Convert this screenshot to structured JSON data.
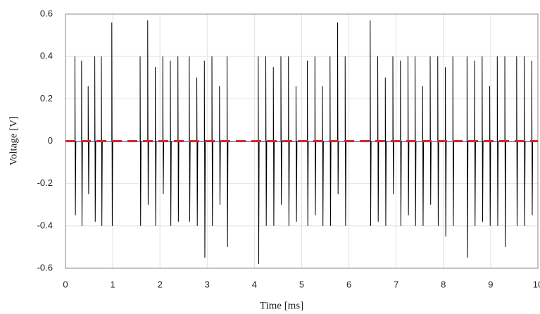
{
  "chart_data": {
    "type": "line",
    "xlabel": "Time [ms]",
    "ylabel": "Voltage [V]",
    "xlim": [
      0,
      10
    ],
    "ylim": [
      -0.6,
      0.6
    ],
    "xticks": [
      0,
      1,
      2,
      3,
      4,
      5,
      6,
      7,
      8,
      9,
      10
    ],
    "yticks": [
      -0.6,
      -0.4,
      -0.2,
      0,
      0.2,
      0.4,
      0.6
    ],
    "grid": true,
    "series": [
      {
        "color": "#000000",
        "x": [
          0,
          0.2,
          0.2,
          0.21,
          0.22,
          0.34,
          0.34,
          0.35,
          0.36,
          0.48,
          0.48,
          0.49,
          0.5,
          0.62,
          0.62,
          0.63,
          0.64,
          0.76,
          0.76,
          0.77,
          0.78,
          0.98,
          0.98,
          0.99,
          1.0,
          1.58,
          1.58,
          1.59,
          1.6,
          1.74,
          1.74,
          1.75,
          1.76,
          1.9,
          1.9,
          1.91,
          1.92,
          2.06,
          2.06,
          2.07,
          2.08,
          2.22,
          2.22,
          2.23,
          2.24,
          2.38,
          2.38,
          2.39,
          2.4,
          2.62,
          2.62,
          2.63,
          2.64,
          2.78,
          2.78,
          2.79,
          2.8,
          2.94,
          2.94,
          2.95,
          2.96,
          3.1,
          3.1,
          3.11,
          3.12,
          3.26,
          3.26,
          3.27,
          3.28,
          3.42,
          3.42,
          3.43,
          3.44,
          4.08,
          4.08,
          4.09,
          4.1,
          4.24,
          4.24,
          4.25,
          4.26,
          4.4,
          4.4,
          4.41,
          4.42,
          4.56,
          4.56,
          4.57,
          4.58,
          4.72,
          4.72,
          4.73,
          4.74,
          4.88,
          4.88,
          4.89,
          4.9,
          5.12,
          5.12,
          5.13,
          5.14,
          5.28,
          5.28,
          5.29,
          5.3,
          5.44,
          5.44,
          5.45,
          5.46,
          5.6,
          5.6,
          5.61,
          5.62,
          5.76,
          5.76,
          5.77,
          5.78,
          5.92,
          5.92,
          5.93,
          5.94,
          6.45,
          6.45,
          6.46,
          6.47,
          6.61,
          6.61,
          6.62,
          6.63,
          6.77,
          6.77,
          6.78,
          6.79,
          6.93,
          6.93,
          6.94,
          6.95,
          7.09,
          7.09,
          7.1,
          7.11,
          7.25,
          7.25,
          7.26,
          7.27,
          7.4,
          7.4,
          7.41,
          7.42,
          7.56,
          7.56,
          7.57,
          7.58,
          7.72,
          7.72,
          7.73,
          7.74,
          7.88,
          7.88,
          7.89,
          7.9,
          8.04,
          8.04,
          8.05,
          8.06,
          8.2,
          8.2,
          8.21,
          8.22,
          8.5,
          8.5,
          8.51,
          8.52,
          8.66,
          8.66,
          8.67,
          8.68,
          8.82,
          8.82,
          8.83,
          8.84,
          8.98,
          8.98,
          8.99,
          9.0,
          9.14,
          9.14,
          9.15,
          9.16,
          9.3,
          9.3,
          9.31,
          9.32,
          9.55,
          9.55,
          9.56,
          9.57,
          9.71,
          9.71,
          9.72,
          9.73,
          9.87,
          9.87,
          9.88,
          9.89,
          10
        ],
        "values": [
          0,
          0,
          0.4,
          -0.35,
          0,
          0,
          0.38,
          -0.4,
          0,
          0,
          0.26,
          -0.25,
          0,
          0,
          0.4,
          -0.38,
          0,
          0,
          0.4,
          -0.4,
          0,
          0,
          0.56,
          -0.4,
          0,
          0,
          0.4,
          -0.4,
          0,
          0,
          0.57,
          -0.3,
          0,
          0,
          0.35,
          -0.4,
          0,
          0,
          0.4,
          -0.25,
          0,
          0,
          0.38,
          -0.4,
          0,
          0,
          0.4,
          -0.38,
          0,
          0,
          0.4,
          -0.38,
          0,
          0,
          0.3,
          -0.4,
          0,
          0,
          0.38,
          -0.55,
          0,
          0,
          0.4,
          -0.4,
          0,
          0,
          0.26,
          -0.3,
          0,
          0,
          0.4,
          -0.5,
          0,
          0,
          0.4,
          -0.58,
          0,
          0,
          0.4,
          -0.4,
          0,
          0,
          0.35,
          -0.4,
          0,
          0,
          0.4,
          -0.3,
          0,
          0,
          0.4,
          -0.4,
          0,
          0,
          0.26,
          -0.38,
          0,
          0,
          0.38,
          -0.4,
          0,
          0,
          0.4,
          -0.35,
          0,
          0,
          0.26,
          -0.4,
          0,
          0,
          0.4,
          -0.4,
          0,
          0,
          0.56,
          -0.25,
          0,
          0,
          0.4,
          -0.4,
          0,
          0,
          0.57,
          -0.4,
          0,
          0,
          0.4,
          -0.38,
          0,
          0,
          0.3,
          -0.4,
          0,
          0,
          0.4,
          -0.25,
          0,
          0,
          0.38,
          -0.4,
          0,
          0,
          0.4,
          -0.35,
          0,
          0,
          0.4,
          -0.4,
          0,
          0,
          0.26,
          -0.4,
          0,
          0,
          0.4,
          -0.3,
          0,
          0,
          0.4,
          -0.4,
          0,
          0,
          0.35,
          -0.45,
          0,
          0,
          0.4,
          -0.4,
          0,
          0,
          0.4,
          -0.55,
          0,
          0,
          0.38,
          -0.4,
          0,
          0,
          0.4,
          -0.38,
          0,
          0,
          0.26,
          -0.4,
          0,
          0,
          0.4,
          -0.4,
          0,
          0,
          0.4,
          -0.5,
          0,
          0,
          0.4,
          -0.4,
          0,
          0,
          0.4,
          -0.4,
          0,
          0,
          0.38,
          -0.35,
          0,
          0
        ]
      },
      {
        "color": "#1f2fa0",
        "x": [
          0,
          10
        ],
        "values": [
          0,
          0
        ]
      },
      {
        "color": "#d62728",
        "dash": true,
        "x": [
          0,
          10
        ],
        "values": [
          0,
          0
        ]
      }
    ]
  }
}
